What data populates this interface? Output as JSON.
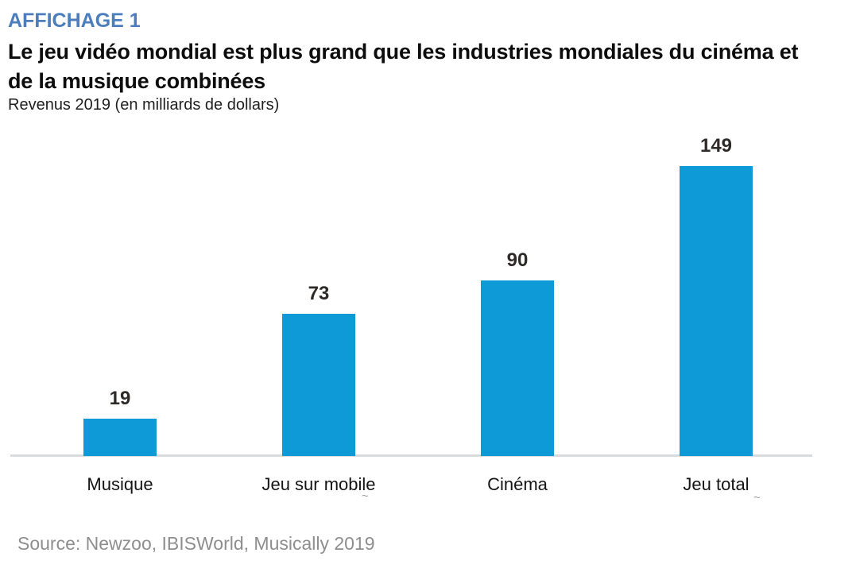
{
  "header": {
    "kicker": "AFFICHAGE 1",
    "title_lines": [
      "Le jeu vidéo mondial est plus grand que les industries mondiales du cinéma et",
      "de la musique combinées"
    ],
    "subtitle": "Revenus 2019 (en milliards de dollars)"
  },
  "chart_data": {
    "type": "bar",
    "title": "Le jeu vidéo mondial est plus grand que les industries mondiales du cinéma et de la musique combinées",
    "subtitle": "Revenus 2019 (en milliards de dollars)",
    "categories": [
      "Musique",
      "Jeu sur mobile",
      "Cinéma",
      "Jeu total"
    ],
    "values": [
      19,
      73,
      90,
      149
    ],
    "value_labels": [
      "19",
      "73",
      "90",
      "149"
    ],
    "xlabel": "",
    "ylabel": "Revenus 2019 (en milliards de dollars)",
    "ylim": [
      0,
      160
    ],
    "grid": false,
    "legend": "none"
  },
  "colors": {
    "bar": "#0d9ad6",
    "kicker": "#4a7ebc",
    "baseline": "#d9dcde",
    "source_text": "#8e8e8e",
    "value_label": "#2e2a28"
  },
  "footer": {
    "source": "Source: Newzoo, IBISWorld, Musically 2019"
  },
  "decorations": {
    "stray_mark": "~"
  }
}
